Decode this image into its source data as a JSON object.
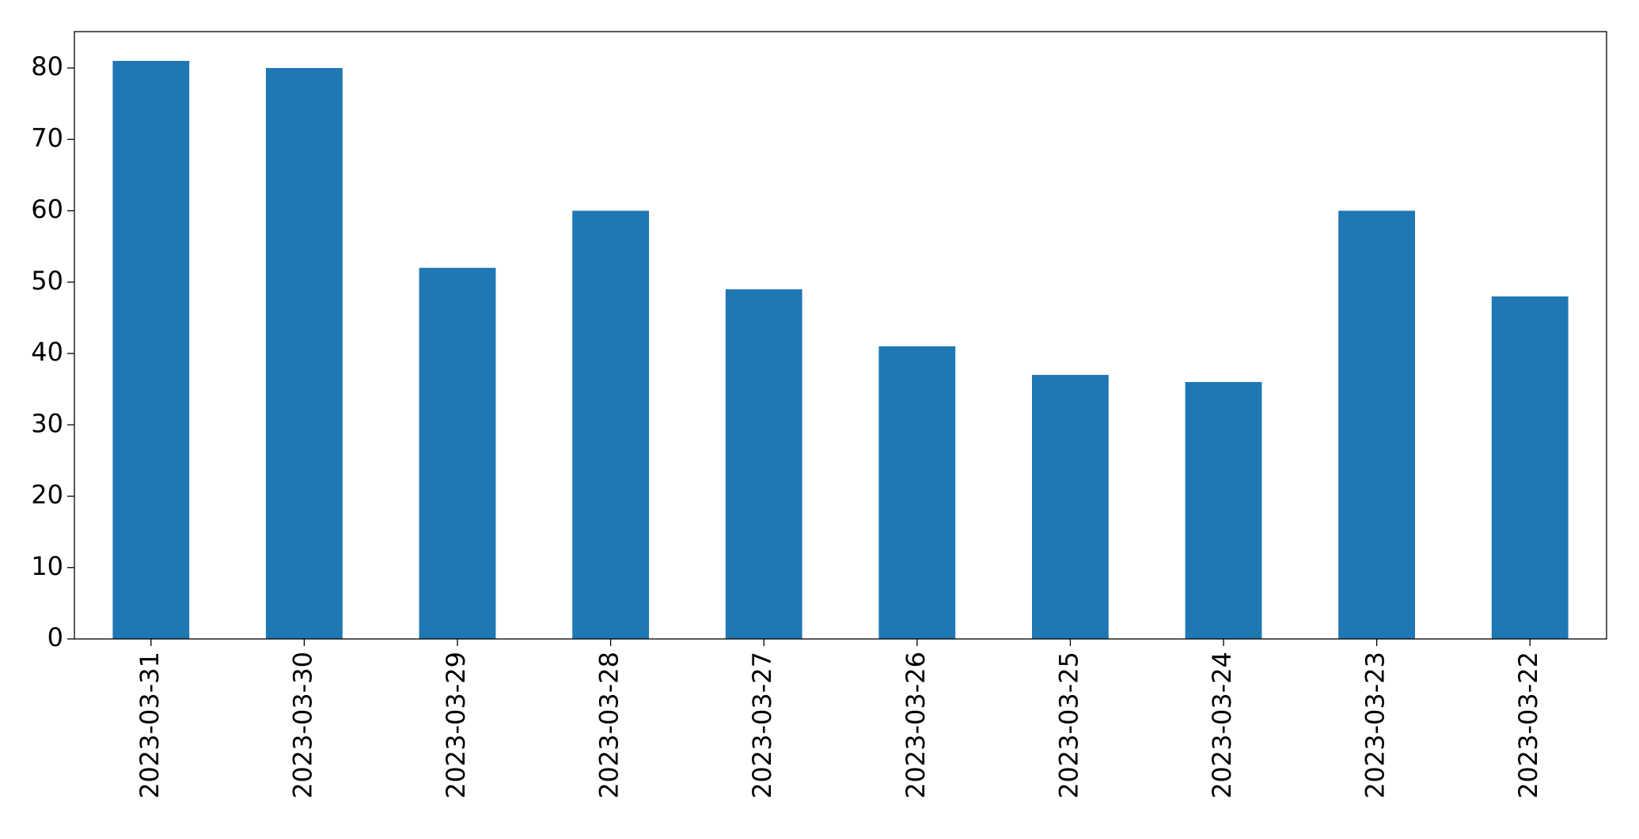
{
  "chart_data": {
    "type": "bar",
    "categories": [
      "2023-03-31",
      "2023-03-30",
      "2023-03-29",
      "2023-03-28",
      "2023-03-27",
      "2023-03-26",
      "2023-03-25",
      "2023-03-24",
      "2023-03-23",
      "2023-03-22"
    ],
    "values": [
      81,
      80,
      52,
      60,
      49,
      41,
      37,
      36,
      60,
      48
    ],
    "color": "#1f77b4",
    "ylim": [
      0,
      85.1
    ],
    "yticks": [
      0,
      10,
      20,
      30,
      40,
      50,
      60,
      70,
      80
    ],
    "grid": false
  }
}
